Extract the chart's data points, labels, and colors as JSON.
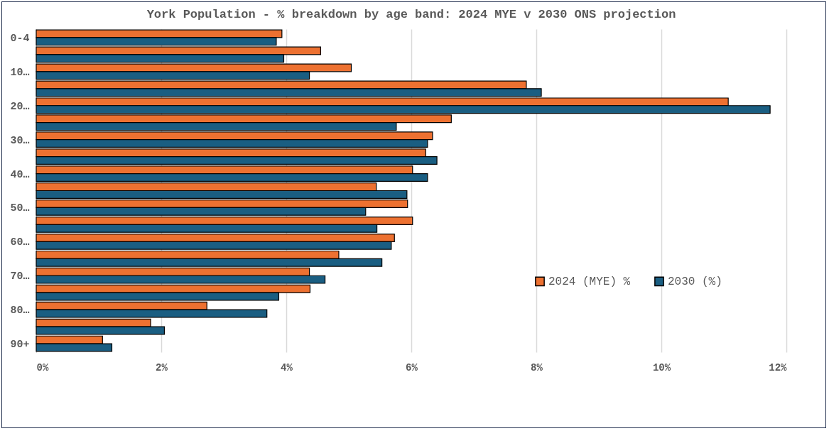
{
  "chart_data": {
    "type": "bar",
    "orientation": "horizontal",
    "title": "York Population - % breakdown by age band: 2024 MYE v 2030 ONS projection",
    "categories": [
      "0-4",
      null,
      "10…",
      null,
      "20…",
      null,
      "30…",
      null,
      "40…",
      null,
      "50…",
      null,
      "60…",
      null,
      "70…",
      null,
      "80…",
      null,
      "90+"
    ],
    "series": [
      {
        "name": "2024 (MYE) %",
        "color": "#ed7131",
        "values": [
          3.93,
          4.55,
          5.04,
          7.84,
          11.07,
          6.64,
          6.34,
          6.23,
          6.02,
          5.44,
          5.94,
          6.02,
          5.73,
          4.84,
          4.37,
          4.38,
          2.73,
          1.83,
          1.06
        ]
      },
      {
        "name": "2030 (%)",
        "color": "#1a5e82",
        "values": [
          3.84,
          3.96,
          4.37,
          8.08,
          11.74,
          5.76,
          6.26,
          6.41,
          6.26,
          5.93,
          5.27,
          5.45,
          5.68,
          5.53,
          4.62,
          3.88,
          3.69,
          2.05,
          1.21
        ]
      }
    ],
    "xlim": [
      0,
      12
    ],
    "xticks": [
      {
        "value": 0,
        "label": "0%"
      },
      {
        "value": 2,
        "label": "2%"
      },
      {
        "value": 4,
        "label": "4%"
      },
      {
        "value": 6,
        "label": "6%"
      },
      {
        "value": 8,
        "label": "8%"
      },
      {
        "value": 10,
        "label": "10%"
      },
      {
        "value": 12,
        "label": "12%"
      }
    ],
    "grid": "x",
    "legend": "bottom right"
  }
}
